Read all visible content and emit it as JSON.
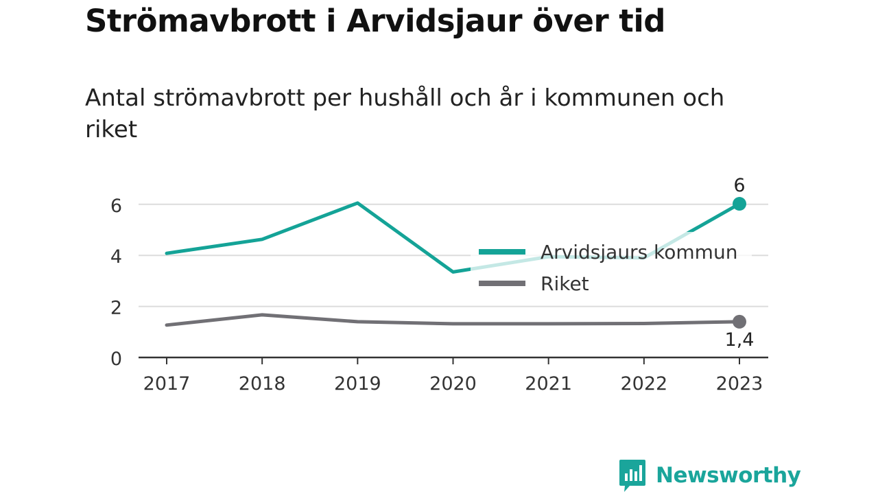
{
  "title": "Strömavbrott i Arvidsjaur över tid",
  "subtitle": "Antal strömavbrott per hushåll och år i kommunen och riket",
  "brand": {
    "name": "Newsworthy",
    "icon": "bar-chart-speech-bubble-icon"
  },
  "chart_data": {
    "type": "line",
    "x": [
      "2017",
      "2018",
      "2019",
      "2020",
      "2021",
      "2022",
      "2023"
    ],
    "series": [
      {
        "name": "Arvidsjaurs kommun",
        "color": "#14a397",
        "values": [
          4.08,
          4.63,
          6.05,
          3.35,
          3.95,
          3.9,
          6.02
        ],
        "end_label": "6"
      },
      {
        "name": "Riket",
        "color": "#717075",
        "values": [
          1.27,
          1.67,
          1.4,
          1.32,
          1.32,
          1.33,
          1.4
        ],
        "end_label": "1,4"
      }
    ],
    "yticks": [
      "0",
      "2",
      "4",
      "6"
    ],
    "ylim": [
      0,
      6.5
    ],
    "grid": true,
    "legend_position": "center-right"
  }
}
